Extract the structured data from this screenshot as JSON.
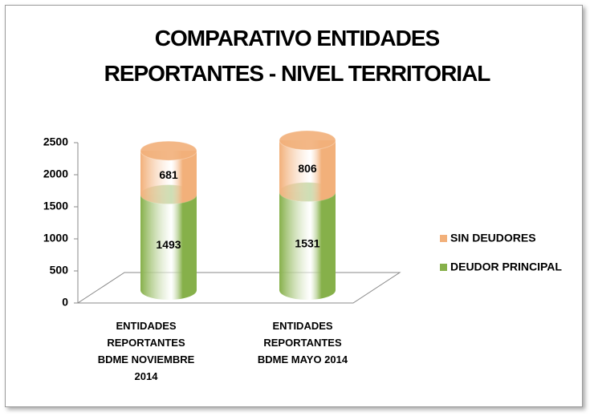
{
  "chart_data": {
    "type": "bar3d_stacked",
    "title": "COMPARATIVO ENTIDADES\nREPORTANTES -  NIVEL TERRITORIAL",
    "categories": [
      "ENTIDADES\nREPORTANTES\nBDME NOVIEMBRE\n2014",
      "ENTIDADES\nREPORTANTES\nBDME MAYO 2014"
    ],
    "series": [
      {
        "name": "DEUDOR PRINCIPAL",
        "color": "#86b04a",
        "values": [
          1493,
          1531
        ]
      },
      {
        "name": "SIN DEUDORES",
        "color": "#f2b07a",
        "values": [
          681,
          806
        ]
      }
    ],
    "ylim": [
      0,
      2500
    ],
    "yticks": [
      0,
      500,
      1000,
      1500,
      2000,
      2500
    ],
    "legend": "right"
  }
}
